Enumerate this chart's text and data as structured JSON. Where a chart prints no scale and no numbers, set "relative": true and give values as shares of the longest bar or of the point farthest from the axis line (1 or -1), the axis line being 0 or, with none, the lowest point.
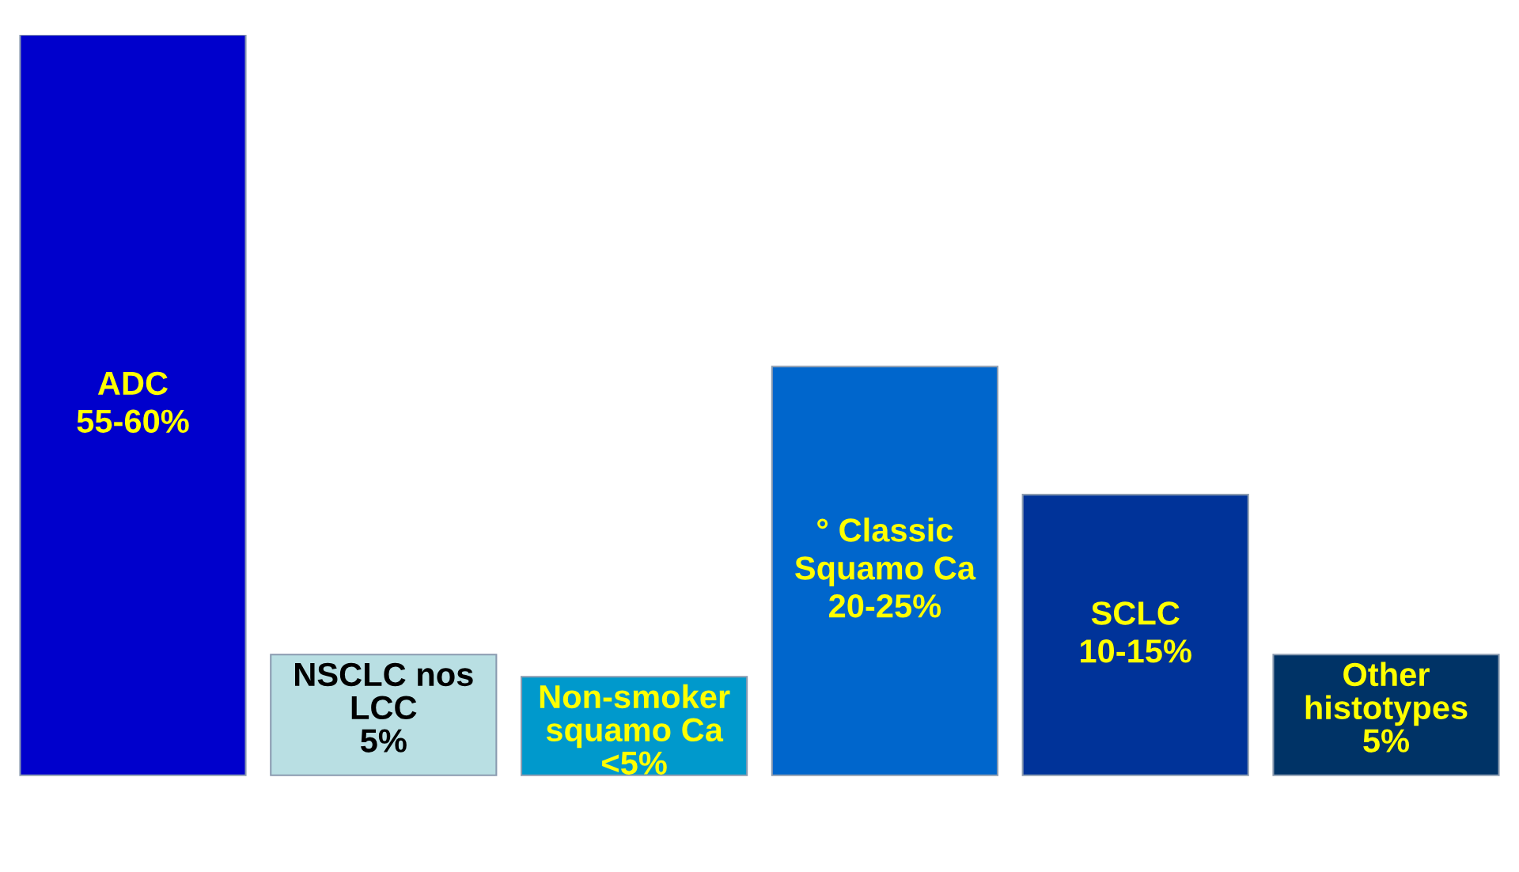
{
  "chart_data": {
    "type": "bar",
    "relative": true,
    "categories": [
      "ADC\n55-60%",
      "NSCLC nos\nLCC\n5%",
      "Non-smoker\nsquamo Ca\n<5%",
      "° Classic\nSquamo Ca\n20-25%",
      "SCLC\n10-15%",
      "Other\nhistotypes\n5%"
    ],
    "values": [
      1,
      0.163,
      0.133,
      0.552,
      0.379,
      0.163
    ],
    "colors": [
      "#0000cc",
      "#b9dfe3",
      "#0099cc",
      "#0066cc",
      "#003399",
      "#003366"
    ]
  }
}
